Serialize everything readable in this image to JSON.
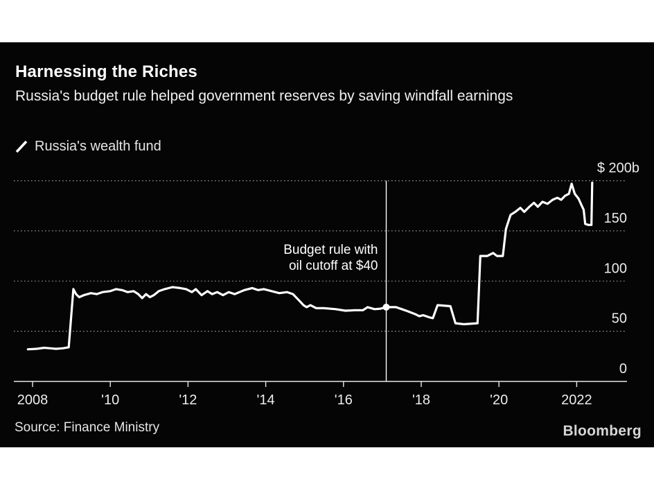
{
  "header": {
    "title": "Harnessing the Riches",
    "subtitle": "Russia's budget rule helped government reserves by saving windfall earnings"
  },
  "legend": {
    "marker": "slash-icon",
    "series_label": "Russia's wealth fund"
  },
  "source": {
    "label": "Source: Finance Ministry"
  },
  "branding": {
    "logo": "Bloomberg"
  },
  "colors": {
    "background": "#050505",
    "page_border": "#ffffff",
    "line": "#ffffff",
    "gridline": "#9a9a9a",
    "axis_text": "#ececec",
    "title_text": "#ffffff"
  },
  "chart_data": {
    "type": "line",
    "title": "Russia's wealth fund",
    "unit": "$ billions",
    "grid": true,
    "legend_position": "top-left",
    "x_axis": {
      "range_years": [
        2007.5,
        2023.3
      ],
      "ticks": [
        {
          "year": 2008,
          "label": "2008"
        },
        {
          "year": 2010,
          "label": "'10"
        },
        {
          "year": 2012,
          "label": "'12"
        },
        {
          "year": 2014,
          "label": "'14"
        },
        {
          "year": 2016,
          "label": "'16"
        },
        {
          "year": 2018,
          "label": "'18"
        },
        {
          "year": 2020,
          "label": "'20"
        },
        {
          "year": 2022,
          "label": "2022"
        }
      ]
    },
    "y_axis": {
      "range": [
        0,
        200
      ],
      "gridline_values": [
        200,
        150,
        100,
        50
      ],
      "labels": [
        {
          "value": 200,
          "label": "$ 200b"
        },
        {
          "value": 150,
          "label": "150"
        },
        {
          "value": 100,
          "label": "100"
        },
        {
          "value": 50,
          "label": "50"
        },
        {
          "value": 0,
          "label": "0"
        }
      ]
    },
    "annotation": {
      "lines": [
        "Budget rule with",
        "oil cutoff at $40"
      ],
      "year": 2017.1,
      "marker_value": 74
    },
    "series": [
      {
        "name": "Russia's wealth fund",
        "color": "#ffffff",
        "points": [
          [
            2007.88,
            32
          ],
          [
            2008.1,
            32.5
          ],
          [
            2008.3,
            33.5
          ],
          [
            2008.45,
            33
          ],
          [
            2008.6,
            32.5
          ],
          [
            2008.78,
            33
          ],
          [
            2008.93,
            34
          ],
          [
            2009.05,
            92
          ],
          [
            2009.12,
            87
          ],
          [
            2009.2,
            84
          ],
          [
            2009.32,
            86
          ],
          [
            2009.5,
            88
          ],
          [
            2009.65,
            87
          ],
          [
            2009.8,
            89
          ],
          [
            2010.0,
            90
          ],
          [
            2010.15,
            92
          ],
          [
            2010.3,
            91
          ],
          [
            2010.45,
            89
          ],
          [
            2010.6,
            90
          ],
          [
            2010.72,
            87
          ],
          [
            2010.82,
            83
          ],
          [
            2010.92,
            87
          ],
          [
            2011.02,
            84
          ],
          [
            2011.12,
            86
          ],
          [
            2011.25,
            90
          ],
          [
            2011.4,
            92
          ],
          [
            2011.6,
            94
          ],
          [
            2011.8,
            93
          ],
          [
            2011.95,
            92
          ],
          [
            2012.1,
            89
          ],
          [
            2012.2,
            92
          ],
          [
            2012.35,
            86
          ],
          [
            2012.5,
            90
          ],
          [
            2012.62,
            87
          ],
          [
            2012.75,
            89
          ],
          [
            2012.9,
            86
          ],
          [
            2013.05,
            89
          ],
          [
            2013.2,
            87
          ],
          [
            2013.45,
            91
          ],
          [
            2013.65,
            93
          ],
          [
            2013.8,
            91
          ],
          [
            2013.95,
            92
          ],
          [
            2014.15,
            90
          ],
          [
            2014.35,
            88
          ],
          [
            2014.55,
            89
          ],
          [
            2014.7,
            87
          ],
          [
            2014.85,
            81
          ],
          [
            2014.97,
            76
          ],
          [
            2015.05,
            74
          ],
          [
            2015.15,
            76
          ],
          [
            2015.3,
            73
          ],
          [
            2015.5,
            73
          ],
          [
            2015.8,
            72
          ],
          [
            2016.05,
            70.5
          ],
          [
            2016.3,
            71
          ],
          [
            2016.5,
            71
          ],
          [
            2016.62,
            74
          ],
          [
            2016.8,
            72
          ],
          [
            2016.95,
            72.5
          ],
          [
            2017.1,
            74
          ],
          [
            2017.35,
            74
          ],
          [
            2017.5,
            72
          ],
          [
            2017.65,
            70
          ],
          [
            2017.85,
            67
          ],
          [
            2017.95,
            65
          ],
          [
            2018.05,
            66
          ],
          [
            2018.2,
            64
          ],
          [
            2018.3,
            63
          ],
          [
            2018.42,
            76
          ],
          [
            2018.75,
            75
          ],
          [
            2018.88,
            58
          ],
          [
            2019.1,
            57
          ],
          [
            2019.45,
            58
          ],
          [
            2019.52,
            125
          ],
          [
            2019.7,
            125
          ],
          [
            2019.85,
            128
          ],
          [
            2019.95,
            125
          ],
          [
            2020.1,
            125
          ],
          [
            2020.18,
            152
          ],
          [
            2020.3,
            166
          ],
          [
            2020.42,
            169
          ],
          [
            2020.55,
            173
          ],
          [
            2020.65,
            169
          ],
          [
            2020.78,
            174
          ],
          [
            2020.9,
            178
          ],
          [
            2021.0,
            174
          ],
          [
            2021.12,
            179
          ],
          [
            2021.25,
            177
          ],
          [
            2021.38,
            181
          ],
          [
            2021.5,
            183
          ],
          [
            2021.6,
            181
          ],
          [
            2021.7,
            185
          ],
          [
            2021.8,
            187
          ],
          [
            2021.87,
            197
          ],
          [
            2021.95,
            187
          ],
          [
            2022.05,
            182
          ],
          [
            2022.12,
            176
          ],
          [
            2022.18,
            171
          ],
          [
            2022.22,
            157
          ],
          [
            2022.3,
            156
          ],
          [
            2022.38,
            156
          ],
          [
            2022.4,
            198
          ]
        ]
      }
    ]
  }
}
